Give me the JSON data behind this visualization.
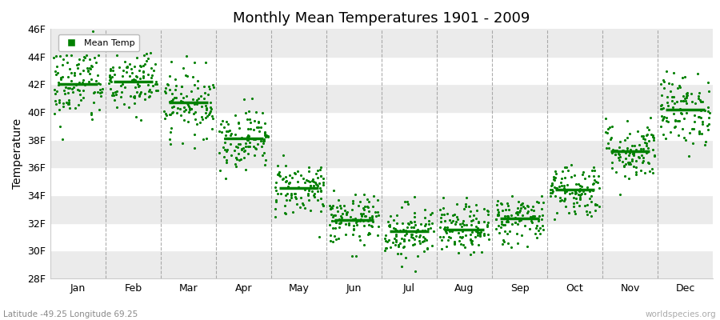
{
  "title": "Monthly Mean Temperatures 1901 - 2009",
  "ylabel": "Temperature",
  "xlabel_bottom": "Latitude -49.25 Longitude 69.25",
  "watermark": "worldspecies.org",
  "months": [
    "Jan",
    "Feb",
    "Mar",
    "Apr",
    "May",
    "Jun",
    "Jul",
    "Aug",
    "Sep",
    "Oct",
    "Nov",
    "Dec"
  ],
  "mean_temps": [
    42.0,
    42.2,
    40.7,
    38.1,
    34.5,
    32.2,
    31.4,
    31.5,
    32.3,
    34.4,
    37.2,
    40.2
  ],
  "ylim": [
    28,
    46
  ],
  "yticks": [
    28,
    30,
    32,
    34,
    36,
    38,
    40,
    42,
    44,
    46
  ],
  "dot_color": "#008000",
  "mean_color": "#008000",
  "bg_gray": "#ebebeb",
  "bg_white": "#ffffff",
  "n_years": 109,
  "seed": 42,
  "scatter_spread": [
    1.5,
    1.3,
    1.2,
    1.1,
    1.0,
    0.9,
    1.0,
    0.9,
    0.9,
    1.0,
    1.1,
    1.3
  ],
  "dot_size": 5
}
